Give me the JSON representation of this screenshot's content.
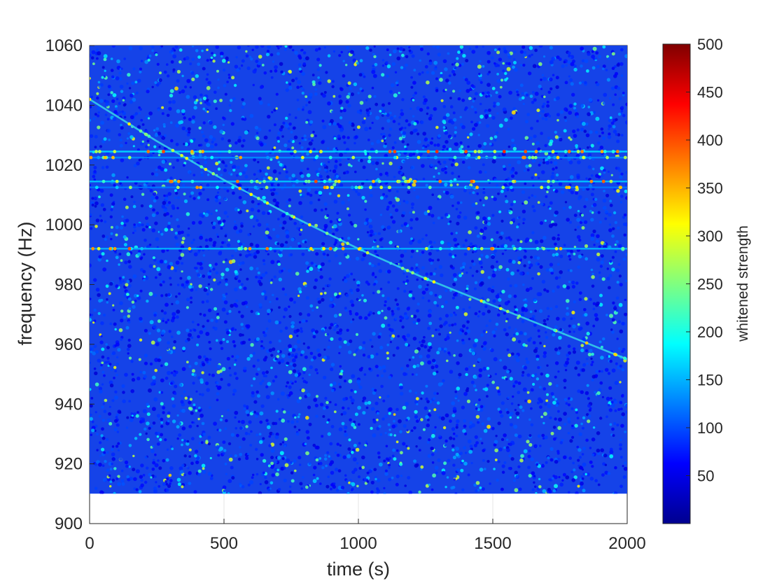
{
  "chart_data": {
    "type": "heatmap",
    "title": "",
    "xlabel": "time (s)",
    "ylabel": "frequency (Hz)",
    "xlim": [
      0,
      2000
    ],
    "ylim": [
      900,
      1060
    ],
    "x_ticks": [
      "0",
      "500",
      "1000",
      "1500",
      "2000"
    ],
    "y_ticks": [
      "900",
      "920",
      "940",
      "960",
      "980",
      "1000",
      "1020",
      "1040",
      "1060"
    ],
    "data_extent": {
      "time": [
        0,
        2000
      ],
      "frequency": [
        910,
        1060
      ]
    },
    "colorbar": {
      "label": "whitened strength",
      "range": [
        0,
        500
      ],
      "ticks": [
        "50",
        "100",
        "150",
        "200",
        "250",
        "300",
        "350",
        "400",
        "450",
        "500"
      ],
      "colormap": "jet"
    },
    "background_strength_mean": 70,
    "signal_track": [
      {
        "time": 0,
        "frequency": 1042
      },
      {
        "time": 250,
        "frequency": 1028
      },
      {
        "time": 500,
        "frequency": 1015
      },
      {
        "time": 750,
        "frequency": 1003
      },
      {
        "time": 1000,
        "frequency": 992
      },
      {
        "time": 1250,
        "frequency": 982
      },
      {
        "time": 1500,
        "frequency": 973
      },
      {
        "time": 1750,
        "frequency": 964
      },
      {
        "time": 2000,
        "frequency": 955
      }
    ],
    "instrumental_lines": [
      {
        "frequency": 1024.5,
        "strength": 170
      },
      {
        "frequency": 1022.5,
        "strength": 130
      },
      {
        "frequency": 1014.5,
        "strength": 160
      },
      {
        "frequency": 1012.5,
        "strength": 120
      },
      {
        "frequency": 992,
        "strength": 150
      }
    ],
    "grid": false
  }
}
